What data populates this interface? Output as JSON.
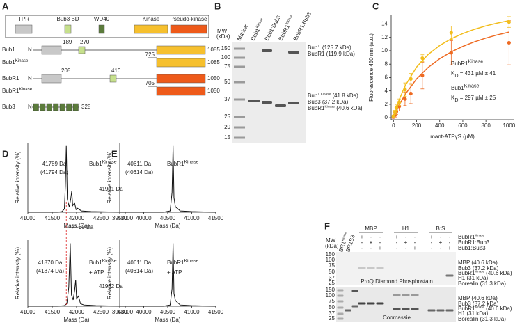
{
  "panels": {
    "A": {
      "label": "A",
      "legend": [
        "TPR",
        "Bub3 BD",
        "WD40",
        "Kinase",
        "Pseudo-kinase"
      ],
      "constructs": [
        {
          "name": "Bub1",
          "n": "N",
          "sites": [
            "189",
            "270"
          ],
          "end": "1085"
        },
        {
          "name": {
            "base": "Bub1",
            "sup": "Kinase"
          },
          "start": "725",
          "end": "1085"
        },
        {
          "name": "BubR1",
          "n": "N",
          "sites": [
            "205",
            "410"
          ],
          "end": "1050"
        },
        {
          "name": {
            "base": "BubR1",
            "sup": "Kinase"
          },
          "start": "705",
          "end": "1050"
        },
        {
          "name": "Bub3",
          "n": "N",
          "end": "328"
        }
      ]
    },
    "B": {
      "label": "B",
      "mw_title": [
        "MW",
        "(kDa)"
      ],
      "mw": [
        "150",
        "100",
        "75",
        "50",
        "37",
        "25",
        "20",
        "15"
      ],
      "lanes": [
        "Marker",
        {
          "base": "Bub1",
          "sup": "Kinase"
        },
        "Bub1:Bub3",
        {
          "base": "BubR1",
          "sup": "Kinase"
        },
        "BubR1:Bub3"
      ],
      "bands": [
        "Bub1 (125.7 kDa)",
        "BubR1 (119.9 kDa)",
        {
          "base": "Bub1",
          "sup": "Kinase",
          "rest": " (41.8 kDa)"
        },
        "Bub3 (37.2 kDa)",
        {
          "base": "BubR1",
          "sup": "Kinase",
          "rest": " (40.6 kDa)"
        }
      ]
    },
    "C": {
      "label": "C"
    },
    "D": {
      "label": "D",
      "shift": "~80 Da"
    },
    "E": {
      "label": "E"
    },
    "F": {
      "label": "F",
      "mw_title": [
        "MW",
        "(kDa)"
      ],
      "ref_lanes": [
        {
          "base": "BR1",
          "sup": "Kinase"
        },
        "BR1B3"
      ],
      "groups": [
        "MBP",
        "H1",
        "B:S"
      ],
      "rows": [
        {
          "base": "BubR1",
          "sup": "Kinase"
        },
        "BubR1:Bub3",
        "Bub1:Bub3"
      ],
      "signs": [
        [
          "+",
          "-",
          "-",
          "+",
          "-",
          "-",
          "+",
          "-",
          "-"
        ],
        [
          "-",
          "+",
          "-",
          "-",
          "+",
          "-",
          "-",
          "+",
          "-"
        ],
        [
          "-",
          "-",
          "+",
          "-",
          "-",
          "+",
          "-",
          "-",
          "+"
        ]
      ],
      "gels": [
        {
          "caption": "ProQ Diamond Phosphostain",
          "mw": [
            "150",
            "100",
            "75",
            "50",
            "37",
            "25"
          ],
          "bands": [
            "MBP (40.6 kDa)",
            "Bub3 (37.2 kDa)",
            {
              "base": "BubR1",
              "sup": "Kinase",
              "rest": " (40.6 kDa)"
            },
            "H1 (31 kDa)",
            "Borealin (31.3 kDa)"
          ]
        },
        {
          "caption": "Coomassie",
          "mw": [
            "150",
            "100",
            "75",
            "50",
            "37",
            "25"
          ],
          "bands": [
            "MBP (40.6 kDa)",
            "Bub3 (37.2 kDa)",
            {
              "base": "BubR1",
              "sup": "Kinase",
              "rest": " (40.6 kDa)"
            },
            "H1 (31 kDa)",
            "Borealin (31.3 kDa)"
          ]
        }
      ]
    }
  },
  "chart_data": [
    {
      "type": "scatter",
      "xlabel": "mant-ATPγS (µM)",
      "ylabel": "Fluorescence 450 nm (a.u.)",
      "xlim": [
        -20,
        1040
      ],
      "ylim": [
        -0.3,
        15.3
      ],
      "xticks": [
        0,
        200,
        400,
        600,
        800,
        1000
      ],
      "yticks": [
        0,
        2,
        4,
        6,
        8,
        10,
        12,
        14
      ],
      "x": [
        0,
        12.5,
        25,
        50,
        100,
        150,
        250,
        500,
        1000
      ],
      "fit_x": [
        0,
        50,
        100,
        200,
        300,
        400,
        500,
        600,
        700,
        800,
        900,
        1000
      ],
      "series": [
        {
          "name": {
            "base": "BubR1",
            "sup": "Kinase"
          },
          "color": "#ee6a22",
          "values": [
            0.1,
            0.4,
            0.9,
            1.7,
            2.8,
            3.6,
            6.3,
            9.7,
            11.2
          ],
          "errors": [
            0.2,
            0.3,
            0.4,
            0.7,
            1.0,
            1.5,
            2.0,
            1.8,
            3.3
          ],
          "fit": [
            0,
            1.9,
            3.45,
            5.8,
            7.51,
            8.81,
            9.83,
            10.65,
            11.33,
            11.9,
            12.38,
            12.79
          ],
          "note": {
            "base": "K",
            "sub": "D",
            "rest": " = 431 µM  ± 41"
          }
        },
        {
          "name": {
            "base": "Bub1",
            "sup": "Kinase"
          },
          "color": "#f2bd1c",
          "values": [
            0.2,
            0.8,
            1.5,
            2.3,
            4.2,
            5.8,
            8.9,
            12.7,
            14.3
          ],
          "errors": [
            0.2,
            0.3,
            0.4,
            0.5,
            1.0,
            0.8,
            0.5,
            1.0,
            0.8
          ],
          "fit": [
            0,
            2.71,
            4.74,
            7.57,
            9.45,
            10.79,
            11.8,
            12.58,
            13.21,
            13.72,
            14.14,
            14.5
          ],
          "note": {
            "base": "K",
            "sub": "D",
            "rest": " = 297 µM  ± 25"
          }
        }
      ]
    },
    {
      "type": "line",
      "title": {
        "base": "Bub1",
        "sup": "Kinase"
      },
      "title_color": "#e8b31a",
      "xlabel": "Mass (Da)",
      "ylabel": "Relative intensity (%)",
      "xlim": [
        41000,
        43000
      ],
      "ylim": [
        0,
        105
      ],
      "xticks": [
        41000,
        41500,
        42000,
        42500,
        43000
      ],
      "color": "#111",
      "x": [
        41000,
        41600,
        41700,
        41750,
        41770,
        41789,
        41810,
        41850,
        41880,
        41901,
        41920,
        41960,
        41990,
        42020,
        42100,
        42300,
        43000
      ],
      "values": [
        0,
        0,
        1,
        5,
        40,
        100,
        20,
        8,
        20,
        32,
        10,
        14,
        4,
        6,
        2,
        1,
        0
      ],
      "annotations": [
        "41789 Da",
        "(41794 Da)",
        "41901 Da"
      ]
    },
    {
      "type": "line",
      "title": {
        "base": "Bub1",
        "sup": "Kinase"
      },
      "title_extra": "+ ATP",
      "title_color": "#e8b31a",
      "xlabel": "Mass (Da)",
      "ylabel": "Relative intensity (%)",
      "xlim": [
        41000,
        43000
      ],
      "ylim": [
        0,
        105
      ],
      "xticks": [
        41000,
        41500,
        42000,
        42500,
        43000
      ],
      "color": "#111",
      "x": [
        41000,
        41600,
        41750,
        41800,
        41840,
        41870,
        41895,
        41930,
        41960,
        41982,
        42000,
        42040,
        42080,
        42150,
        42400,
        43000
      ],
      "values": [
        0,
        0,
        1,
        4,
        30,
        100,
        18,
        10,
        25,
        42,
        12,
        16,
        4,
        2,
        1,
        0
      ],
      "annotations": [
        "41870 Da",
        "(41874 Da)",
        "41982 Da"
      ]
    },
    {
      "type": "line",
      "title": {
        "base": "BubR1",
        "sup": "Kinase"
      },
      "title_color": "#ee6a22",
      "xlabel": "Mass (Da)",
      "ylabel": "Relative intensity (%)",
      "xlim": [
        39500,
        41500
      ],
      "ylim": [
        0,
        105
      ],
      "xticks": [
        39500,
        40000,
        40500,
        41000,
        41500
      ],
      "color": "#111",
      "x": [
        39500,
        40400,
        40550,
        40590,
        40611,
        40630,
        40660,
        40700,
        40760,
        41000,
        41500
      ],
      "values": [
        0,
        0,
        2,
        30,
        100,
        22,
        8,
        6,
        2,
        1,
        0
      ],
      "annotations": [
        "40611 Da",
        "(40614 Da)"
      ]
    },
    {
      "type": "line",
      "title": {
        "base": "BubR1",
        "sup": "Kinase"
      },
      "title_extra": "+ ATP",
      "title_color": "#ee6a22",
      "xlabel": "Mass (Da)",
      "ylabel": "Relative intensity (%)",
      "xlim": [
        39500,
        41500
      ],
      "ylim": [
        0,
        105
      ],
      "xticks": [
        39500,
        40000,
        40500,
        41000,
        41500
      ],
      "color": "#111",
      "x": [
        39500,
        40400,
        40550,
        40590,
        40611,
        40630,
        40660,
        40700,
        40760,
        41000,
        41500
      ],
      "values": [
        0,
        0,
        2,
        28,
        100,
        20,
        9,
        6,
        2,
        1,
        0
      ],
      "annotations": [
        "40611 Da",
        "(40614 Da)"
      ]
    }
  ]
}
